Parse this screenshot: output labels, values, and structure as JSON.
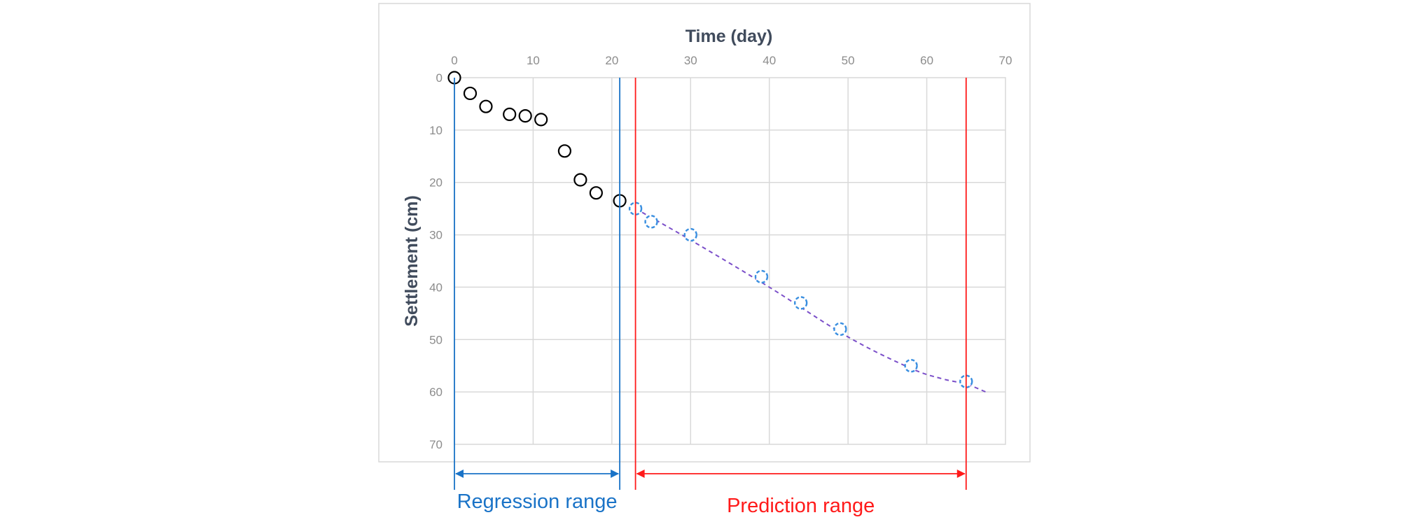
{
  "chart_data": {
    "type": "scatter",
    "xlabel": "Time (day)",
    "ylabel": "Settlement (cm)",
    "xlim": [
      0,
      70
    ],
    "ylim": [
      0,
      70
    ],
    "y_inverted": true,
    "x_axis_position": "top",
    "grid": true,
    "xticks": [
      0,
      10,
      20,
      30,
      40,
      50,
      60,
      70
    ],
    "yticks": [
      0,
      10,
      20,
      30,
      40,
      50,
      60,
      70
    ],
    "series": [
      {
        "marker": "open-circle",
        "color": "#000000",
        "x": [
          0,
          2,
          4,
          7,
          9,
          11,
          14,
          16,
          18,
          21
        ],
        "y": [
          0,
          3,
          5.5,
          7,
          7.3,
          8,
          14,
          19.5,
          22,
          23.5
        ]
      },
      {
        "marker": "open-circle-dashed",
        "color": "#3a8fe0",
        "x": [
          23,
          25,
          30,
          39,
          44,
          49,
          58,
          65
        ],
        "y": [
          25,
          27.5,
          30,
          38,
          43,
          48,
          55,
          58
        ]
      }
    ],
    "trend_line": {
      "style": "dashed",
      "color": "#7b4fc9",
      "x": [
        23,
        30,
        40,
        50,
        58,
        62,
        65,
        67.5
      ],
      "y": [
        25,
        31,
        40,
        49.5,
        55.5,
        57.5,
        58.5,
        60
      ]
    },
    "ranges": [
      {
        "label": "Regression range",
        "color": "#1a73c7",
        "start": 0,
        "end": 21
      },
      {
        "label": "Prediction range",
        "color": "#ff1a1a",
        "start": 23,
        "end": 65
      }
    ]
  }
}
